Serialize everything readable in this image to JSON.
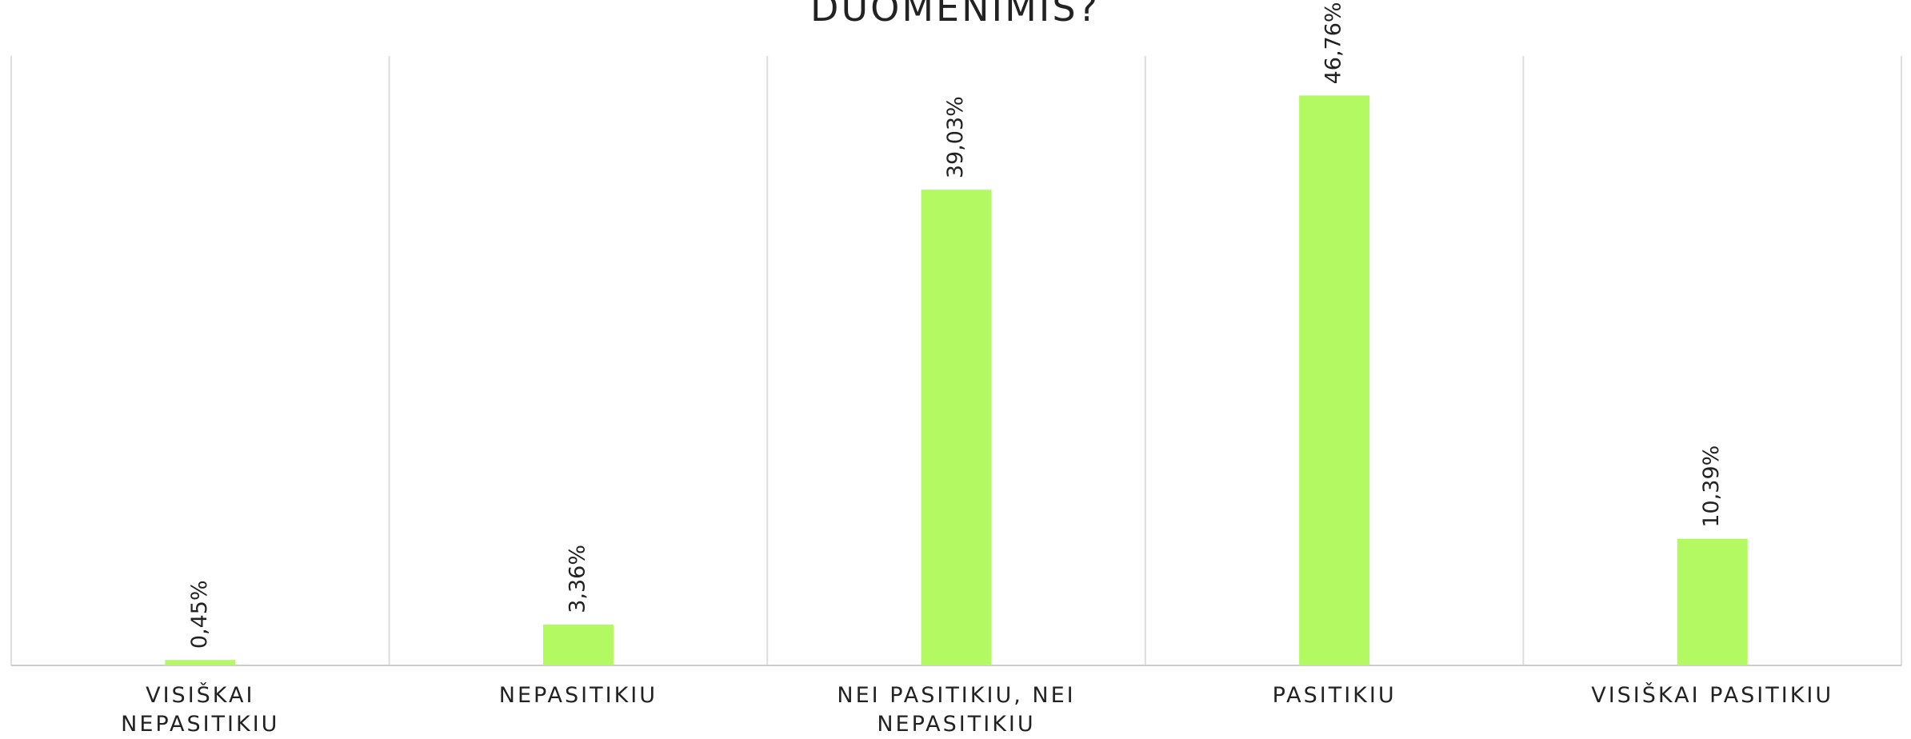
{
  "chart_data": {
    "type": "bar",
    "title": "DUOMENIMIS?",
    "categories": [
      "VISIŠKAI NEPASITIKIU",
      "NEPASITIKIU",
      "NEI PASITIKIU, NEI NEPASITIKIU",
      "PASITIKIU",
      "VISIŠKAI PASITIKIU"
    ],
    "values": [
      0.45,
      3.36,
      39.03,
      46.76,
      10.39
    ],
    "value_labels": [
      "0,45%",
      "3,36%",
      "39,03%",
      "46,76%",
      "10,39%"
    ],
    "color": "#b3f961",
    "ylim": [
      0,
      50
    ]
  }
}
